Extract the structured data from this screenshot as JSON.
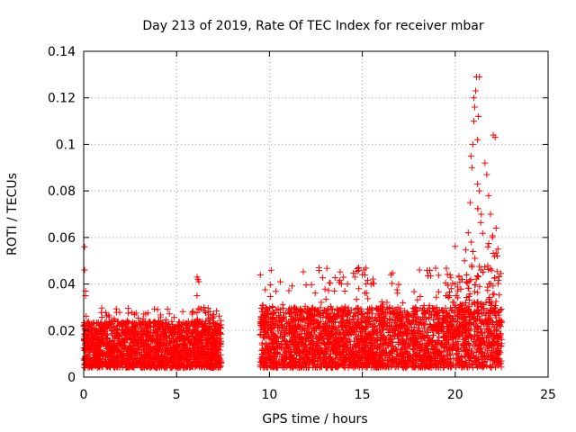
{
  "chart_data": {
    "type": "scatter",
    "title": "Day 213 of 2019, Rate Of TEC Index for receiver mbar",
    "xlabel": "GPS time / hours",
    "ylabel": "ROTI / TECUs",
    "xlim": [
      0,
      25
    ],
    "ylim": [
      0,
      0.14
    ],
    "xticks": [
      "0",
      "5",
      "10",
      "15",
      "20",
      "25"
    ],
    "yticks": [
      "0",
      "0.02",
      "0.04",
      "0.06",
      "0.08",
      "0.1",
      "0.12",
      "0.14"
    ],
    "grid": true,
    "marker": "+",
    "color": "#ff0000",
    "series": [
      {
        "name": "ROTI",
        "segments": [
          {
            "t_start": 0.0,
            "t_end": 7.4,
            "base_min": 0.004,
            "base_max": 0.024,
            "peak": 0.03
          },
          {
            "t_start": 9.5,
            "t_end": 22.5,
            "base_min": 0.004,
            "base_max": 0.03,
            "peak": 0.047
          }
        ],
        "notable_points": [
          [
            0.05,
            0.056
          ],
          [
            0.05,
            0.046
          ],
          [
            0.1,
            0.037
          ],
          [
            0.1,
            0.035
          ],
          [
            6.1,
            0.043
          ],
          [
            6.15,
            0.042
          ],
          [
            6.2,
            0.041
          ],
          [
            6.1,
            0.035
          ],
          [
            14.6,
            0.043
          ],
          [
            14.8,
            0.047
          ],
          [
            15.0,
            0.044
          ],
          [
            15.2,
            0.04
          ],
          [
            14.2,
            0.04
          ],
          [
            13.5,
            0.037
          ],
          [
            19.5,
            0.035
          ],
          [
            19.8,
            0.038
          ],
          [
            20.0,
            0.04
          ],
          [
            20.2,
            0.043
          ],
          [
            20.5,
            0.05
          ],
          [
            20.7,
            0.062
          ],
          [
            20.8,
            0.075
          ],
          [
            20.9,
            0.09
          ],
          [
            20.95,
            0.1
          ],
          [
            21.0,
            0.11
          ],
          [
            21.05,
            0.116
          ],
          [
            21.1,
            0.123
          ],
          [
            21.15,
            0.129
          ],
          [
            21.3,
            0.129
          ],
          [
            21.2,
            0.083
          ],
          [
            21.3,
            0.08
          ],
          [
            21.4,
            0.07
          ],
          [
            21.6,
            0.092
          ],
          [
            21.7,
            0.087
          ],
          [
            21.8,
            0.078
          ],
          [
            21.9,
            0.07
          ],
          [
            22.0,
            0.06
          ],
          [
            22.05,
            0.104
          ],
          [
            22.15,
            0.103
          ],
          [
            22.2,
            0.064
          ],
          [
            22.3,
            0.055
          ],
          [
            21.2,
            0.102
          ],
          [
            21.0,
            0.12
          ],
          [
            20.85,
            0.095
          ],
          [
            21.25,
            0.112
          ]
        ]
      }
    ]
  }
}
